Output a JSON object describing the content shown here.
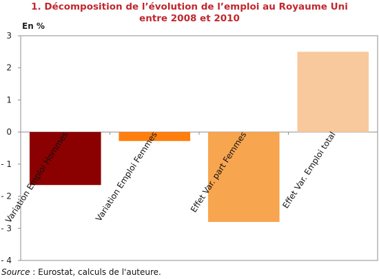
{
  "chart_data": {
    "type": "bar",
    "title": "1. Décomposition de l’évolution de l’emploi au Royaume Uni",
    "subtitle": "entre 2008 et 2010",
    "unit_label": "En %",
    "categories": [
      "Variation Emploi Hommes",
      "Variation Emploi Femmes",
      "Effet Var. part Femmes",
      "Effet Var. Emploi total"
    ],
    "values": [
      -1.65,
      -0.28,
      -2.8,
      2.5
    ],
    "colors": [
      "#8b0000",
      "#ff7f0e",
      "#f8a54f",
      "#f8c99d"
    ],
    "ylim": [
      -4,
      3
    ],
    "yticks": [
      3,
      2,
      1,
      0,
      -1,
      -2,
      -3,
      -4
    ],
    "ytick_labels": [
      "3",
      "2",
      "1",
      "0",
      "- 1",
      "- 2",
      "- 3",
      "- 4"
    ],
    "grid": false,
    "legend": "none"
  },
  "source": {
    "label": "Source",
    "text": " : Eurostat, calculs de l'auteure."
  }
}
